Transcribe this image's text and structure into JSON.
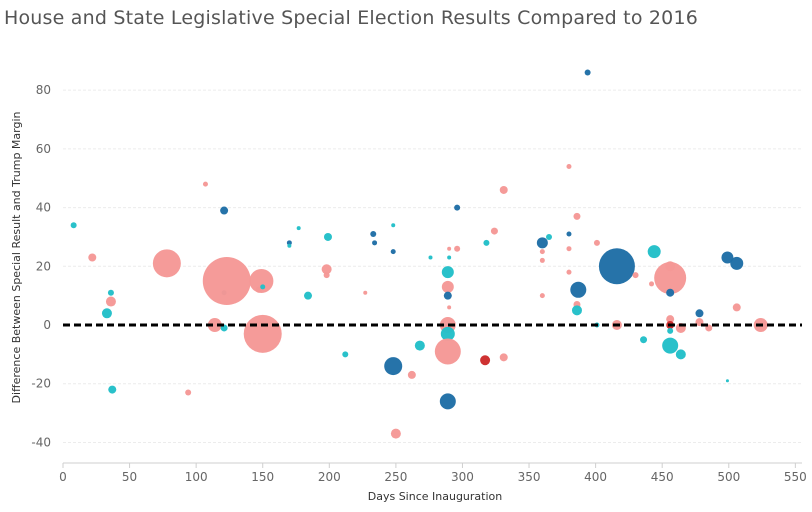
{
  "chart_data": {
    "type": "scatter",
    "title": "House and State Legislative Special Election Results Compared to 2016",
    "xlabel": "Days Since Inauguration",
    "ylabel": "Difference Between Special Result and Trump Margin",
    "xlim": [
      0,
      555
    ],
    "ylim": [
      -47,
      93
    ],
    "xticks": [
      0,
      50,
      100,
      150,
      200,
      250,
      300,
      350,
      400,
      450,
      500,
      550
    ],
    "yticks": [
      -40,
      -20,
      0,
      20,
      40,
      60,
      80
    ],
    "reference_line": {
      "y": 0,
      "style": "dashed",
      "color": "#000000"
    },
    "grid": "horizontal",
    "colors": {
      "dark_blue": "#1f6ea6",
      "teal": "#22bfc8",
      "salmon": "#f59896",
      "red": "#cc2b2b"
    },
    "points": [
      {
        "x": 8,
        "y": 34,
        "size": 3,
        "color": "teal"
      },
      {
        "x": 22,
        "y": 23,
        "size": 4,
        "color": "salmon"
      },
      {
        "x": 33,
        "y": 4,
        "size": 5,
        "color": "teal"
      },
      {
        "x": 36,
        "y": 8,
        "size": 5,
        "color": "salmon"
      },
      {
        "x": 36,
        "y": 11,
        "size": 3,
        "color": "teal"
      },
      {
        "x": 37,
        "y": -22,
        "size": 4,
        "color": "teal"
      },
      {
        "x": 78,
        "y": 21,
        "size": 14,
        "color": "salmon"
      },
      {
        "x": 94,
        "y": -23,
        "size": 3,
        "color": "salmon"
      },
      {
        "x": 107,
        "y": 48,
        "size": 2.5,
        "color": "salmon"
      },
      {
        "x": 114,
        "y": 0,
        "size": 7,
        "color": "salmon"
      },
      {
        "x": 121,
        "y": 39,
        "size": 4,
        "color": "dark_blue"
      },
      {
        "x": 121,
        "y": 11,
        "size": 2.5,
        "color": "dark_blue"
      },
      {
        "x": 121,
        "y": -1,
        "size": 3.5,
        "color": "teal"
      },
      {
        "x": 123,
        "y": 15,
        "size": 24,
        "color": "salmon"
      },
      {
        "x": 147,
        "y": 12,
        "size": 3,
        "color": "salmon"
      },
      {
        "x": 149,
        "y": 15,
        "size": 12,
        "color": "salmon"
      },
      {
        "x": 150,
        "y": 13,
        "size": 2.5,
        "color": "teal"
      },
      {
        "x": 150,
        "y": -3,
        "size": 19,
        "color": "salmon"
      },
      {
        "x": 170,
        "y": 28,
        "size": 2.5,
        "color": "dark_blue"
      },
      {
        "x": 170,
        "y": 27,
        "size": 2,
        "color": "teal"
      },
      {
        "x": 177,
        "y": 33,
        "size": 2,
        "color": "teal"
      },
      {
        "x": 184,
        "y": 10,
        "size": 4,
        "color": "teal"
      },
      {
        "x": 198,
        "y": 19,
        "size": 5,
        "color": "salmon"
      },
      {
        "x": 198,
        "y": 17,
        "size": 3,
        "color": "salmon"
      },
      {
        "x": 199,
        "y": 30,
        "size": 4,
        "color": "teal"
      },
      {
        "x": 212,
        "y": -10,
        "size": 3,
        "color": "teal"
      },
      {
        "x": 227,
        "y": 11,
        "size": 2,
        "color": "salmon"
      },
      {
        "x": 233,
        "y": 31,
        "size": 3,
        "color": "dark_blue"
      },
      {
        "x": 234,
        "y": 28,
        "size": 2.5,
        "color": "dark_blue"
      },
      {
        "x": 248,
        "y": -14,
        "size": 9,
        "color": "dark_blue"
      },
      {
        "x": 248,
        "y": 25,
        "size": 2.5,
        "color": "dark_blue"
      },
      {
        "x": 248,
        "y": 34,
        "size": 2,
        "color": "teal"
      },
      {
        "x": 250,
        "y": -37,
        "size": 5,
        "color": "salmon"
      },
      {
        "x": 262,
        "y": -17,
        "size": 4,
        "color": "salmon"
      },
      {
        "x": 268,
        "y": -7,
        "size": 5,
        "color": "teal"
      },
      {
        "x": 276,
        "y": 23,
        "size": 2,
        "color": "teal"
      },
      {
        "x": 289,
        "y": 18,
        "size": 6,
        "color": "teal"
      },
      {
        "x": 289,
        "y": 13,
        "size": 6,
        "color": "salmon"
      },
      {
        "x": 289,
        "y": 10,
        "size": 4,
        "color": "dark_blue"
      },
      {
        "x": 289,
        "y": 0,
        "size": 8,
        "color": "salmon"
      },
      {
        "x": 289,
        "y": -3,
        "size": 7,
        "color": "teal"
      },
      {
        "x": 289,
        "y": -9,
        "size": 13,
        "color": "salmon"
      },
      {
        "x": 289,
        "y": -26,
        "size": 8,
        "color": "dark_blue"
      },
      {
        "x": 290,
        "y": 26,
        "size": 2,
        "color": "salmon"
      },
      {
        "x": 290,
        "y": 23,
        "size": 2,
        "color": "teal"
      },
      {
        "x": 290,
        "y": 6,
        "size": 2,
        "color": "salmon"
      },
      {
        "x": 296,
        "y": 40,
        "size": 3,
        "color": "dark_blue"
      },
      {
        "x": 296,
        "y": 26,
        "size": 3,
        "color": "salmon"
      },
      {
        "x": 317,
        "y": -12,
        "size": 5,
        "color": "red"
      },
      {
        "x": 318,
        "y": 28,
        "size": 3,
        "color": "teal"
      },
      {
        "x": 324,
        "y": 32,
        "size": 3.5,
        "color": "salmon"
      },
      {
        "x": 331,
        "y": 46,
        "size": 4,
        "color": "salmon"
      },
      {
        "x": 331,
        "y": -11,
        "size": 4,
        "color": "salmon"
      },
      {
        "x": 360,
        "y": 28,
        "size": 5.5,
        "color": "dark_blue"
      },
      {
        "x": 360,
        "y": 25,
        "size": 2.5,
        "color": "salmon"
      },
      {
        "x": 360,
        "y": 22,
        "size": 2.5,
        "color": "salmon"
      },
      {
        "x": 360,
        "y": 10,
        "size": 2.5,
        "color": "salmon"
      },
      {
        "x": 365,
        "y": 30,
        "size": 3,
        "color": "teal"
      },
      {
        "x": 380,
        "y": 54,
        "size": 2.5,
        "color": "salmon"
      },
      {
        "x": 380,
        "y": 31,
        "size": 2.5,
        "color": "dark_blue"
      },
      {
        "x": 380,
        "y": 26,
        "size": 2.5,
        "color": "salmon"
      },
      {
        "x": 380,
        "y": 18,
        "size": 2.5,
        "color": "salmon"
      },
      {
        "x": 386,
        "y": 37,
        "size": 3.5,
        "color": "salmon"
      },
      {
        "x": 387,
        "y": 12,
        "size": 8,
        "color": "dark_blue"
      },
      {
        "x": 386,
        "y": 7,
        "size": 3.5,
        "color": "salmon"
      },
      {
        "x": 386,
        "y": 5,
        "size": 5,
        "color": "teal"
      },
      {
        "x": 394,
        "y": 86,
        "size": 3,
        "color": "dark_blue"
      },
      {
        "x": 401,
        "y": 28,
        "size": 3,
        "color": "salmon"
      },
      {
        "x": 401,
        "y": 0,
        "size": 2.5,
        "color": "teal"
      },
      {
        "x": 416,
        "y": 20,
        "size": 18,
        "color": "dark_blue"
      },
      {
        "x": 416,
        "y": 0,
        "size": 5,
        "color": "salmon"
      },
      {
        "x": 430,
        "y": 17,
        "size": 3,
        "color": "salmon"
      },
      {
        "x": 436,
        "y": -5,
        "size": 3.5,
        "color": "teal"
      },
      {
        "x": 442,
        "y": 14,
        "size": 2.5,
        "color": "salmon"
      },
      {
        "x": 444,
        "y": 25,
        "size": 6.5,
        "color": "teal"
      },
      {
        "x": 456,
        "y": 20,
        "size": 5,
        "color": "salmon"
      },
      {
        "x": 456,
        "y": 16,
        "size": 16,
        "color": "salmon"
      },
      {
        "x": 456,
        "y": 11,
        "size": 4,
        "color": "dark_blue"
      },
      {
        "x": 456,
        "y": 2,
        "size": 4,
        "color": "salmon"
      },
      {
        "x": 456,
        "y": 0,
        "size": 4,
        "color": "red"
      },
      {
        "x": 456,
        "y": -2,
        "size": 3,
        "color": "teal"
      },
      {
        "x": 456,
        "y": -7,
        "size": 8,
        "color": "teal"
      },
      {
        "x": 464,
        "y": -10,
        "size": 5,
        "color": "teal"
      },
      {
        "x": 464,
        "y": -1,
        "size": 5,
        "color": "salmon"
      },
      {
        "x": 478,
        "y": 4,
        "size": 4,
        "color": "dark_blue"
      },
      {
        "x": 478,
        "y": 1,
        "size": 4,
        "color": "salmon"
      },
      {
        "x": 485,
        "y": -1,
        "size": 3.5,
        "color": "salmon"
      },
      {
        "x": 499,
        "y": 23,
        "size": 6,
        "color": "dark_blue"
      },
      {
        "x": 499,
        "y": -19,
        "size": 1.5,
        "color": "teal"
      },
      {
        "x": 506,
        "y": 21,
        "size": 6.5,
        "color": "dark_blue"
      },
      {
        "x": 506,
        "y": 6,
        "size": 4,
        "color": "salmon"
      },
      {
        "x": 524,
        "y": 0,
        "size": 7,
        "color": "salmon"
      }
    ]
  }
}
